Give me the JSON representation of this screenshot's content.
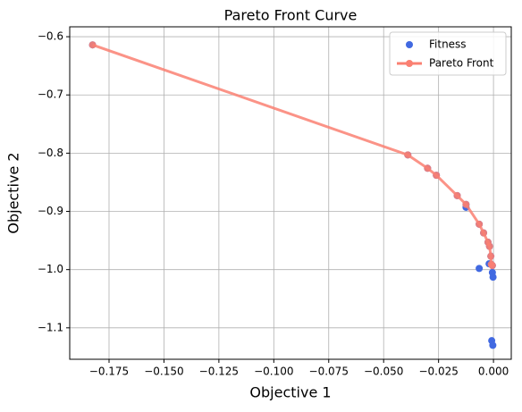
{
  "chart_data": {
    "type": "scatter",
    "title": "Pareto Front Curve",
    "x_label": "Objective 1",
    "y_label": "Objective 2",
    "xlim": [
      -0.1929,
      0.0081
    ],
    "ylim": [
      -1.154,
      -0.583
    ],
    "xticks": [
      {
        "value": -0.175,
        "label": "−0.175"
      },
      {
        "value": -0.15,
        "label": "−0.150"
      },
      {
        "value": -0.125,
        "label": "−0.125"
      },
      {
        "value": -0.1,
        "label": "−0.100"
      },
      {
        "value": -0.075,
        "label": "−0.075"
      },
      {
        "value": -0.05,
        "label": "−0.050"
      },
      {
        "value": -0.025,
        "label": "−0.025"
      },
      {
        "value": 0,
        "label": "0.000"
      }
    ],
    "yticks": [
      {
        "value": -0.6,
        "label": "−0.6"
      },
      {
        "value": -0.7,
        "label": "−0.7"
      },
      {
        "value": -0.8,
        "label": "−0.8"
      },
      {
        "value": -0.9,
        "label": "−0.9"
      },
      {
        "value": -1.0,
        "label": "−1.0"
      },
      {
        "value": -1.1,
        "label": "−1.1"
      }
    ],
    "grid": true,
    "legend": "upper-right",
    "series": [
      {
        "name": "Fitness",
        "color": "#4169e1",
        "mode": "markers",
        "x": [
          -0.1825,
          -0.039,
          -0.03,
          -0.026,
          -0.0165,
          -0.0125,
          -0.0125,
          -0.0065,
          -0.0045,
          -0.0025,
          -0.0018,
          -0.0012,
          -0.001,
          -0.0005,
          -0.0065,
          -0.002,
          -0.0005,
          -0.0002,
          -0.0008,
          -0.0003
        ],
        "values": [
          -0.614,
          -0.803,
          -0.826,
          -0.838,
          -0.873,
          -0.888,
          -0.893,
          -0.922,
          -0.937,
          -0.953,
          -0.96,
          -0.977,
          -0.991,
          -0.993,
          -0.998,
          -0.99,
          -1.005,
          -1.013,
          -1.122,
          -1.13
        ]
      },
      {
        "name": "Pareto Front",
        "color": "#fa8072",
        "mode": "lines+markers",
        "x": [
          -0.1825,
          -0.039,
          -0.03,
          -0.026,
          -0.0165,
          -0.0125,
          -0.0065,
          -0.0045,
          -0.0025,
          -0.0018,
          -0.0012,
          -0.001,
          -0.0005
        ],
        "values": [
          -0.614,
          -0.803,
          -0.826,
          -0.838,
          -0.873,
          -0.888,
          -0.922,
          -0.937,
          -0.953,
          -0.96,
          -0.977,
          -0.991,
          -0.993
        ]
      }
    ]
  }
}
